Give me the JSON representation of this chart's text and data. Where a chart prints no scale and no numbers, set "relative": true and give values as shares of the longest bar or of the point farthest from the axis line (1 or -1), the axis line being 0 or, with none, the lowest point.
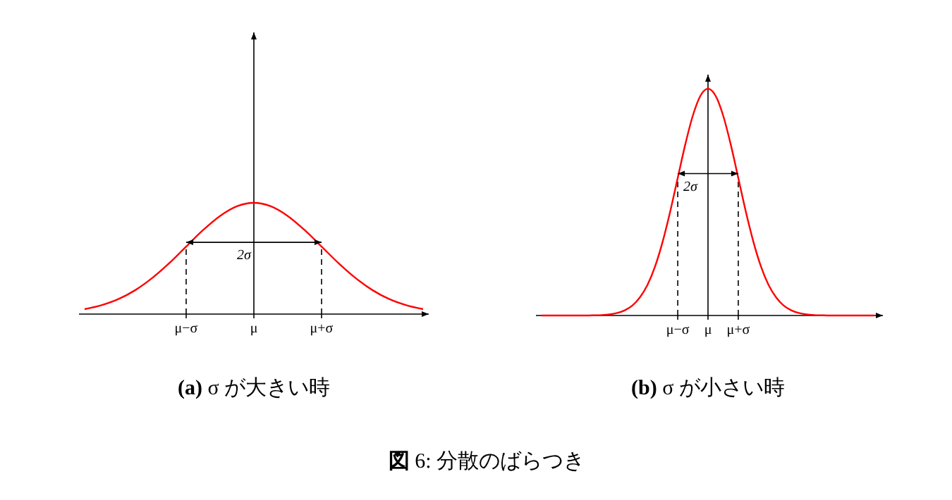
{
  "chart_data": [
    {
      "type": "line",
      "title": "(a) σ が大きい時",
      "relative": true,
      "marker": "none",
      "categories": [
        null,
        null,
        null,
        null,
        null,
        null,
        "μ−σ",
        null,
        null,
        null,
        "μ",
        null,
        null,
        null,
        "μ+σ",
        null,
        null,
        null,
        null,
        null,
        null
      ],
      "series": [
        {
          "color": "#ff0000",
          "values": [
            0.044,
            0.08,
            0.135,
            0.216,
            0.325,
            0.458,
            0.607,
            0.755,
            0.882,
            0.969,
            1,
            0.969,
            0.882,
            0.755,
            0.607,
            0.458,
            0.325,
            0.216,
            0.135,
            0.08,
            0.044
          ]
        }
      ],
      "ref_lines": [
        {
          "axis": "x",
          "value": "μ−σ",
          "line_style": "dashed"
        },
        {
          "axis": "x",
          "value": "μ+σ",
          "line_style": "dashed"
        }
      ],
      "annotations": [
        "2σ"
      ]
    },
    {
      "type": "line",
      "title": "(b) σ が小さい時",
      "relative": true,
      "marker": "none",
      "categories": [
        null,
        null,
        null,
        null,
        null,
        null,
        null,
        null,
        null,
        null,
        null,
        null,
        null,
        null,
        null,
        null,
        null,
        null,
        "μ−σ",
        null,
        null,
        null,
        "μ",
        null,
        null,
        null,
        "μ+σ",
        null,
        null,
        null,
        null,
        null,
        null,
        null,
        null,
        null,
        null,
        null,
        null,
        null,
        null,
        null,
        null,
        null,
        null
      ],
      "series": [
        {
          "color": "#ff0000",
          "values": [
            0,
            0,
            0,
            0,
            0,
            0,
            0,
            0.001,
            0.002,
            0.005,
            0.011,
            0.023,
            0.044,
            0.08,
            0.135,
            0.216,
            0.325,
            0.458,
            0.607,
            0.755,
            0.882,
            0.969,
            1,
            0.969,
            0.882,
            0.755,
            0.607,
            0.458,
            0.325,
            0.216,
            0.135,
            0.08,
            0.044,
            0.023,
            0.011,
            0.005,
            0.002,
            0.001,
            0,
            0,
            0,
            0,
            0,
            0,
            0
          ]
        }
      ],
      "ref_lines": [
        {
          "axis": "x",
          "value": "μ−σ",
          "line_style": "dashed"
        },
        {
          "axis": "x",
          "value": "μ+σ",
          "line_style": "dashed"
        }
      ],
      "annotations": [
        "2σ",
        "図 6: 分散のばらつき"
      ]
    }
  ]
}
